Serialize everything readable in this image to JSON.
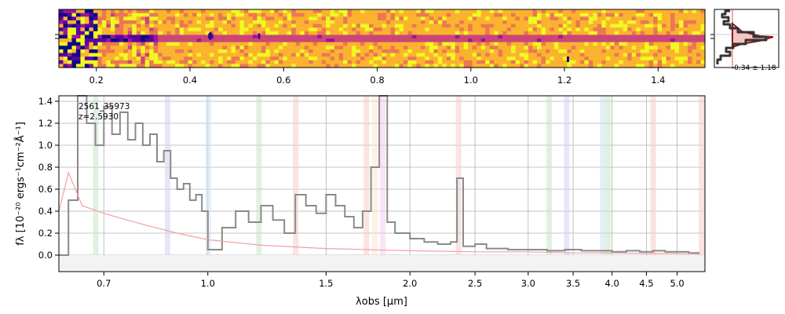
{
  "figure": {
    "object_id": "2561_35973",
    "redshift_label": "z=2.5930",
    "hist_annotation": "-0.34 ± 1.18"
  },
  "colors": {
    "spectrum": "#8a8a8a",
    "error": "#f4a0a0",
    "grid": "#b0b0b0",
    "hist": "#333333",
    "hist_outline": "#8b1a1a",
    "hist_fill": "#f4c6c6",
    "hist_ref": "#e05050",
    "lines": [
      "#c8e6c9",
      "#d6d0f4",
      "#cfe2f3",
      "#c8e6c9",
      "#f4cccc",
      "#f4cccc",
      "#fce5cd",
      "#f4ccee",
      "#f4cccc"
    ]
  },
  "chart_data": [
    {
      "type": "heatmap",
      "name": "2d-spectrum",
      "xticks": [
        "0.2",
        "0.4",
        "0.6",
        "0.8",
        "1.0",
        "1.2",
        "1.4"
      ],
      "xtick_values": [
        0.2,
        0.4,
        0.6,
        0.8,
        1.0,
        1.2,
        1.4
      ],
      "xlim": [
        0.12,
        1.5
      ],
      "colormap": "plasma"
    },
    {
      "type": "line",
      "name": "residual-histogram",
      "annotation": "-0.34 ± 1.18"
    },
    {
      "type": "line",
      "name": "1d-spectrum",
      "xlabel": "λobs [μm]",
      "ylabel": "fλ [10⁻²⁰ ergs⁻¹cm⁻²Å⁻¹]",
      "xlim": [
        0.6,
        5.5
      ],
      "ylim": [
        -0.15,
        1.45
      ],
      "xticks": [
        "0.7",
        "1.0",
        "1.5",
        "2.0",
        "2.5",
        "3.0",
        "3.5",
        "4.0",
        "4.5",
        "5.0"
      ],
      "xtick_values": [
        0.7,
        1.0,
        1.5,
        2.0,
        2.5,
        3.0,
        3.5,
        4.0,
        4.5,
        5.0
      ],
      "yticks": [
        "0.0",
        "0.2",
        "0.4",
        "0.6",
        "0.8",
        "1.0",
        "1.2",
        "1.4"
      ],
      "ytick_values": [
        0.0,
        0.2,
        0.4,
        0.6,
        0.8,
        1.0,
        1.2,
        1.4
      ],
      "grid": true,
      "emission_lines_um": [
        0.68,
        0.87,
        1.0,
        1.19,
        1.35,
        1.72,
        1.77,
        1.82,
        2.36,
        3.22,
        3.42,
        3.87,
        3.94,
        4.6,
        5.43
      ],
      "series": [
        {
          "x": [
            0.6,
            0.62,
            0.64,
            0.66,
            0.68,
            0.7,
            0.72,
            0.74,
            0.76,
            0.78,
            0.8,
            0.82,
            0.84,
            0.86,
            0.88,
            0.9,
            0.92,
            0.94,
            0.96,
            0.98,
            1.0,
            1.05,
            1.1,
            1.15,
            1.2,
            1.25,
            1.3,
            1.35,
            1.4,
            1.45,
            1.5,
            1.55,
            1.6,
            1.65,
            1.7,
            1.75,
            1.8,
            1.85,
            1.9,
            2.0,
            2.1,
            2.2,
            2.3,
            2.35,
            2.4,
            2.5,
            2.6,
            2.8,
            3.0,
            3.2,
            3.4,
            3.6,
            3.8,
            4.0,
            4.2,
            4.4,
            4.6,
            4.8,
            5.0,
            5.2,
            5.4
          ],
          "y": [
            0.0,
            0.5,
            1.45,
            1.2,
            1.0,
            1.35,
            1.1,
            1.3,
            1.05,
            1.2,
            1.0,
            1.1,
            0.85,
            0.95,
            0.7,
            0.6,
            0.65,
            0.5,
            0.55,
            0.4,
            0.05,
            0.25,
            0.4,
            0.3,
            0.45,
            0.32,
            0.2,
            0.55,
            0.45,
            0.38,
            0.55,
            0.45,
            0.35,
            0.25,
            0.4,
            0.8,
            1.45,
            0.3,
            0.2,
            0.15,
            0.12,
            0.1,
            0.12,
            0.7,
            0.08,
            0.1,
            0.06,
            0.05,
            0.05,
            0.04,
            0.05,
            0.04,
            0.04,
            0.03,
            0.04,
            0.03,
            0.04,
            0.03,
            0.03,
            0.02,
            0.02
          ]
        },
        {
          "x": [
            0.6,
            0.62,
            0.65,
            0.7,
            0.8,
            0.9,
            1.0,
            1.2,
            1.5,
            2.0,
            2.5,
            3.0,
            3.5,
            4.0,
            4.5,
            5.0,
            5.4
          ],
          "y": [
            0.4,
            0.75,
            0.45,
            0.38,
            0.28,
            0.2,
            0.14,
            0.09,
            0.06,
            0.04,
            0.03,
            0.03,
            0.02,
            0.02,
            0.015,
            0.015,
            0.01
          ]
        }
      ]
    }
  ]
}
